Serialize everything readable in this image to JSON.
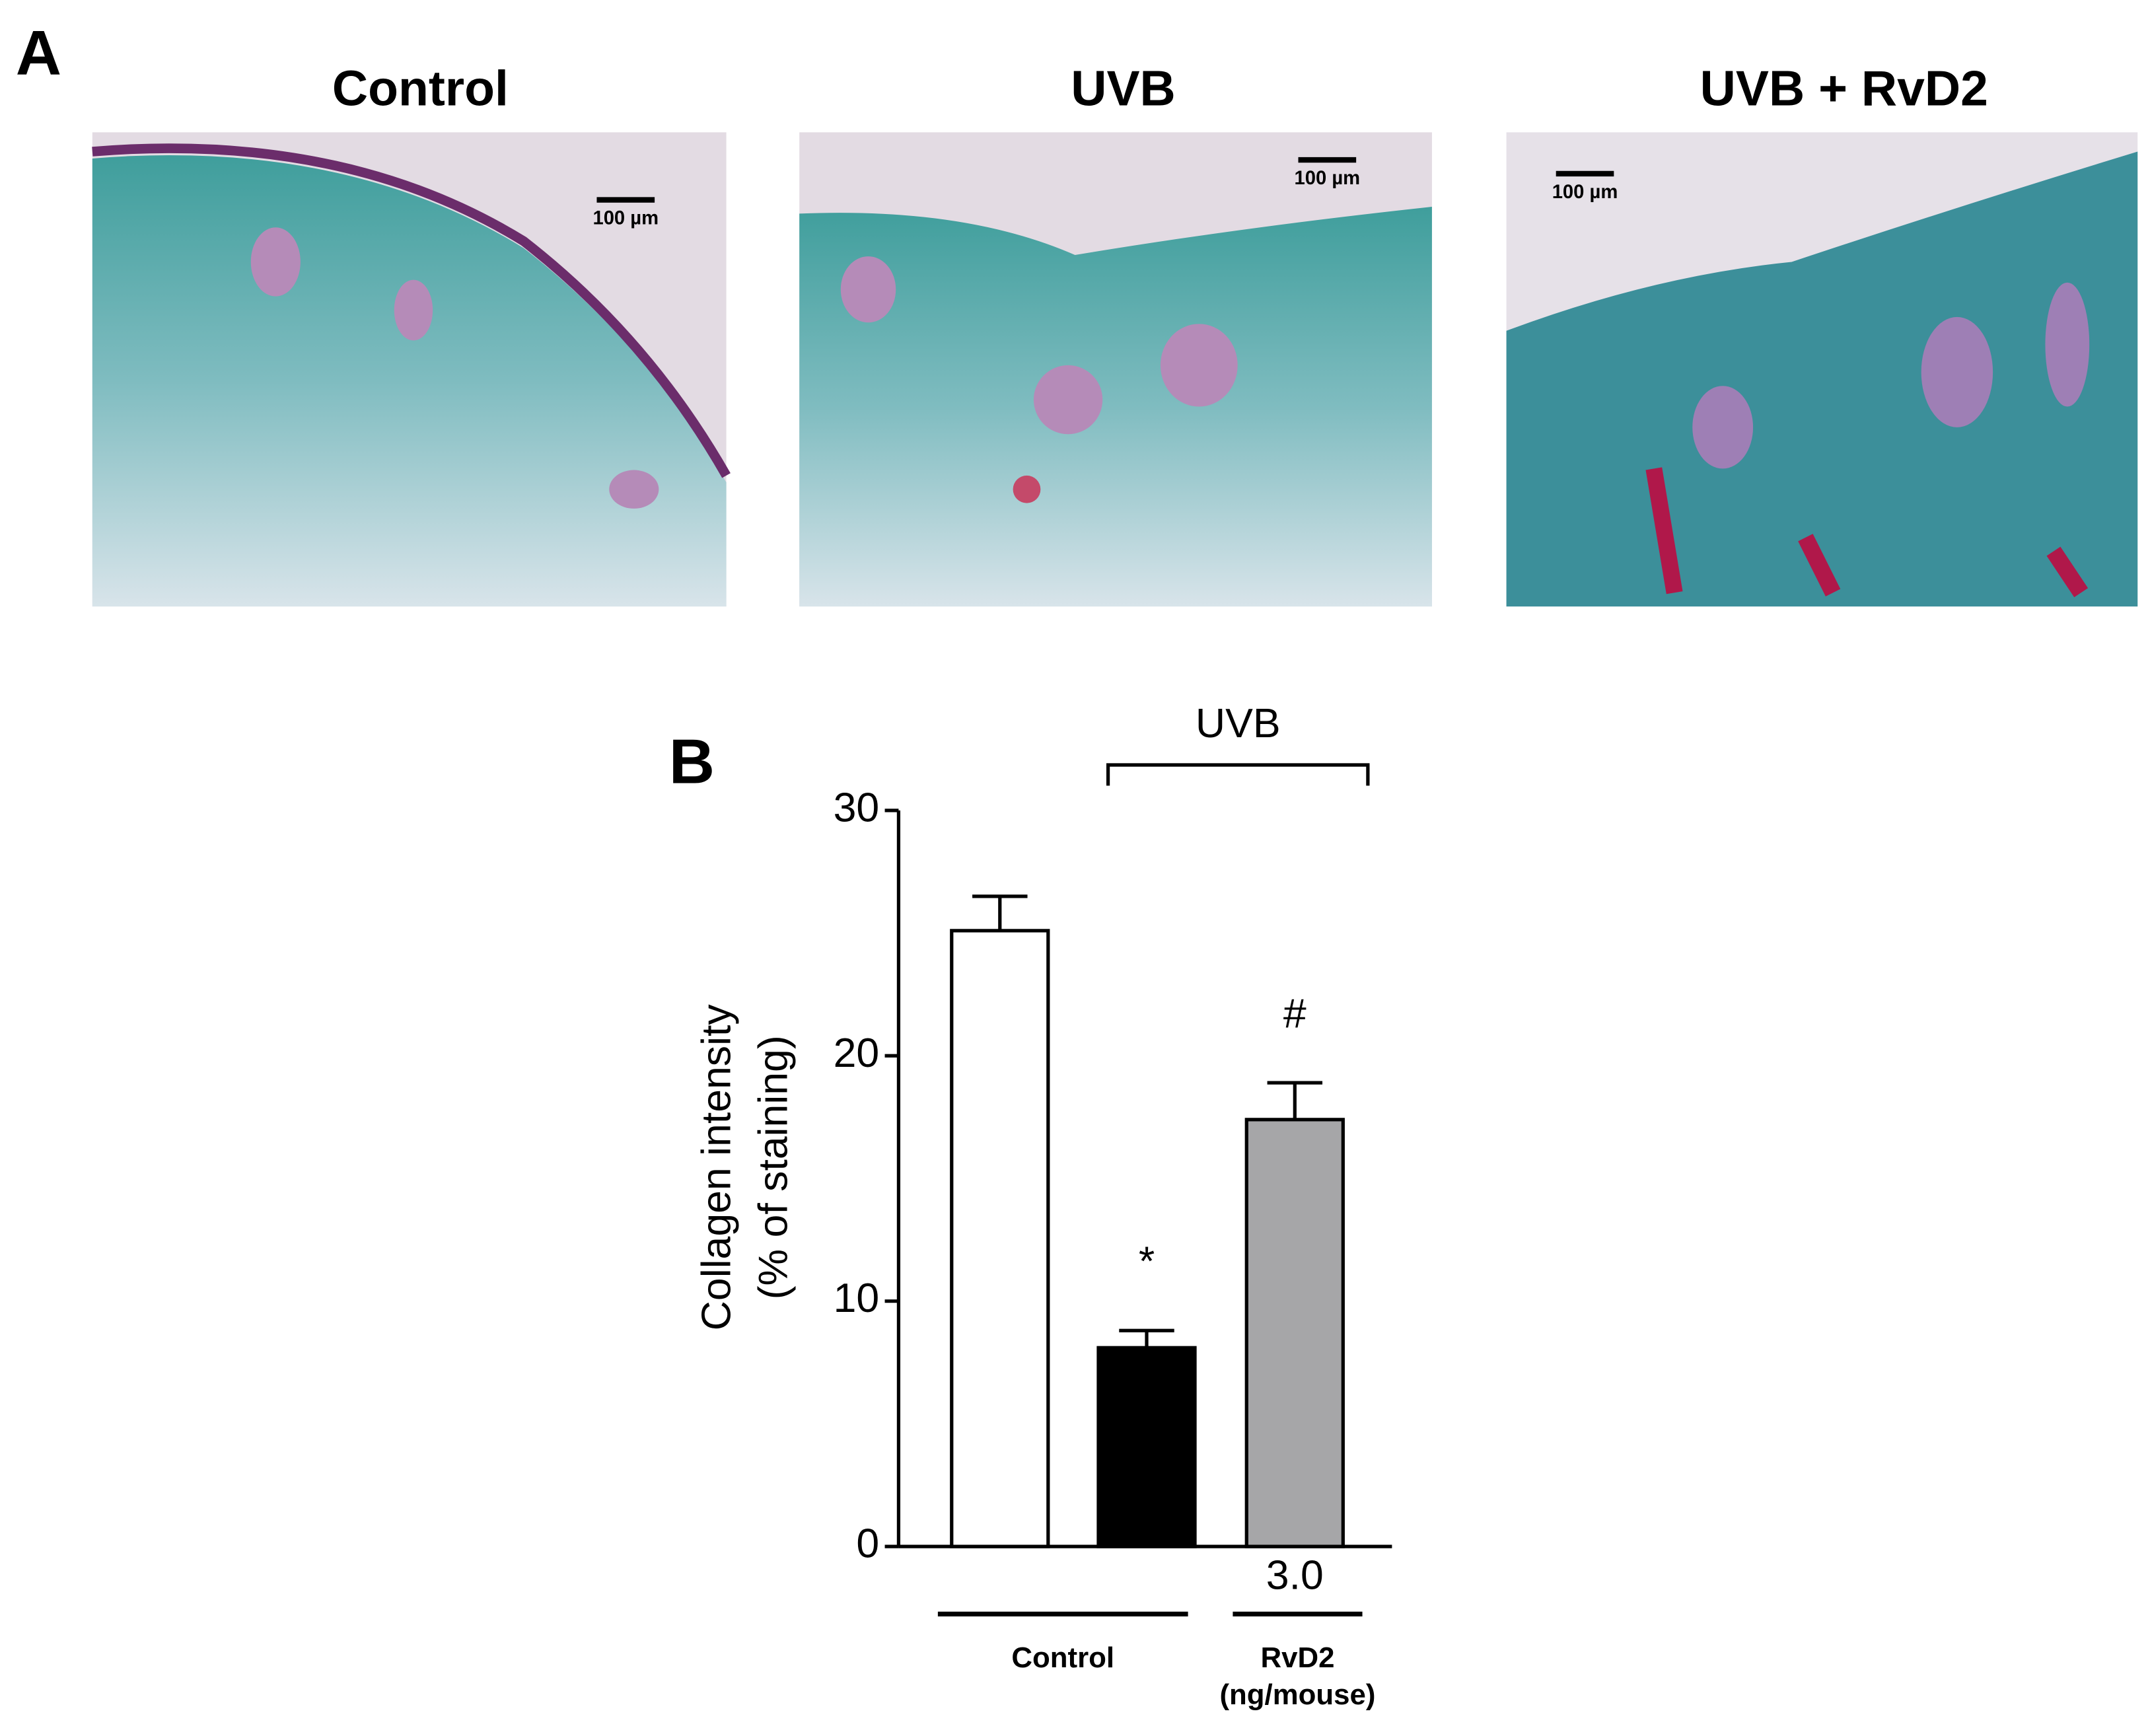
{
  "figure": {
    "panel_a": {
      "label": "A",
      "images": [
        {
          "title": "Control",
          "scale_bar": "100 µm"
        },
        {
          "title": "UVB",
          "scale_bar": "100 µm"
        },
        {
          "title": "UVB + RvD2",
          "scale_bar": "100 µm"
        }
      ]
    }
  },
  "chart_data": {
    "type": "bar",
    "panel_label": "B",
    "ylabel": [
      "Collagen intensity",
      "(% of staining)"
    ],
    "categories": [
      null,
      null,
      "3.0"
    ],
    "values": [
      25.1,
      8.1,
      17.4
    ],
    "errors": [
      1.4,
      0.7,
      1.5
    ],
    "colors": [
      "#ffffff",
      "#000000",
      "#a6a6a8"
    ],
    "annotations": [
      null,
      "*",
      "#"
    ],
    "ylim": [
      0,
      30
    ],
    "yticks": [
      0,
      10,
      20,
      30
    ],
    "groups": [
      {
        "label": "Control",
        "from": 0,
        "to": 1
      },
      {
        "label": [
          "RvD2",
          "(ng/mouse)"
        ],
        "from": 2,
        "to": 2
      }
    ],
    "bracket": {
      "label": "UVB",
      "from": 1,
      "to": 2
    }
  }
}
